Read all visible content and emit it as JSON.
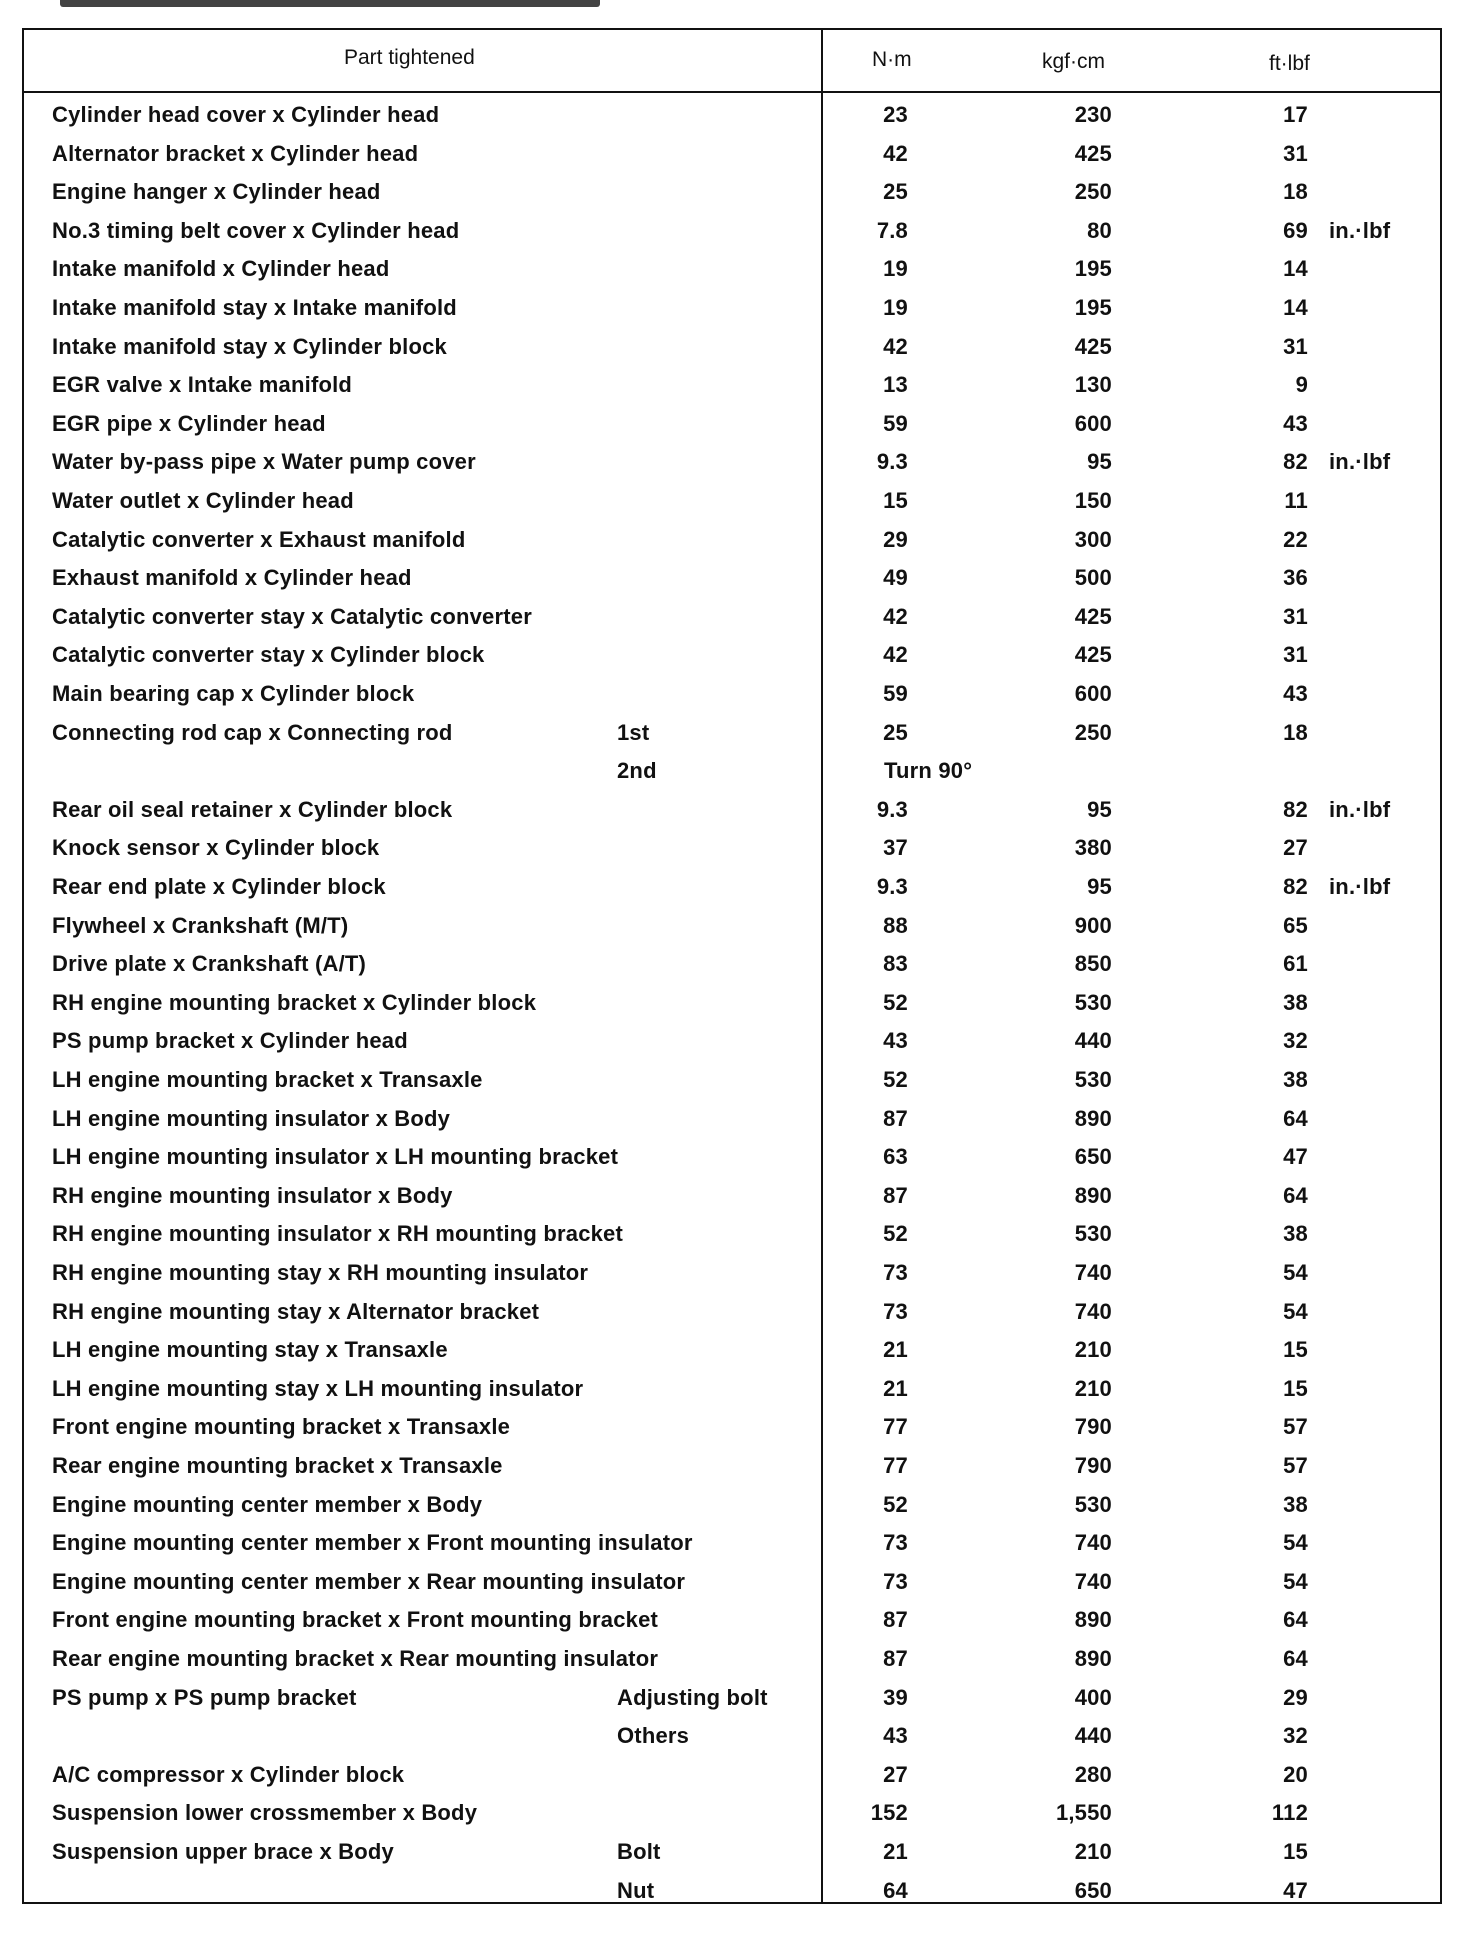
{
  "header": {
    "part": "Part tightened",
    "nm": "N·m",
    "kgf": "kgf·cm",
    "ft": "ft·lbf"
  },
  "rows": [
    {
      "part": "Cylinder head cover x Cylinder head",
      "sub": "",
      "nm": "23",
      "kgf": "230",
      "ft": "17",
      "note": ""
    },
    {
      "part": "Alternator bracket x Cylinder head",
      "sub": "",
      "nm": "42",
      "kgf": "425",
      "ft": "31",
      "note": ""
    },
    {
      "part": "Engine hanger x Cylinder head",
      "sub": "",
      "nm": "25",
      "kgf": "250",
      "ft": "18",
      "note": ""
    },
    {
      "part": "No.3 timing belt cover x Cylinder head",
      "sub": "",
      "nm": "7.8",
      "kgf": "80",
      "ft": "69",
      "note": "in.·lbf"
    },
    {
      "part": "Intake manifold x Cylinder head",
      "sub": "",
      "nm": "19",
      "kgf": "195",
      "ft": "14",
      "note": ""
    },
    {
      "part": "Intake manifold stay x Intake manifold",
      "sub": "",
      "nm": "19",
      "kgf": "195",
      "ft": "14",
      "note": ""
    },
    {
      "part": "Intake manifold stay x Cylinder block",
      "sub": "",
      "nm": "42",
      "kgf": "425",
      "ft": "31",
      "note": ""
    },
    {
      "part": "EGR valve x Intake manifold",
      "sub": "",
      "nm": "13",
      "kgf": "130",
      "ft": "9",
      "note": ""
    },
    {
      "part": "EGR pipe x Cylinder head",
      "sub": "",
      "nm": "59",
      "kgf": "600",
      "ft": "43",
      "note": ""
    },
    {
      "part": "Water by-pass pipe x Water pump cover",
      "sub": "",
      "nm": "9.3",
      "kgf": "95",
      "ft": "82",
      "note": "in.·lbf"
    },
    {
      "part": "Water outlet x Cylinder head",
      "sub": "",
      "nm": "15",
      "kgf": "150",
      "ft": "11",
      "note": ""
    },
    {
      "part": "Catalytic converter x Exhaust manifold",
      "sub": "",
      "nm": "29",
      "kgf": "300",
      "ft": "22",
      "note": ""
    },
    {
      "part": "Exhaust manifold x Cylinder head",
      "sub": "",
      "nm": "49",
      "kgf": "500",
      "ft": "36",
      "note": ""
    },
    {
      "part": "Catalytic converter stay x Catalytic converter",
      "sub": "",
      "nm": "42",
      "kgf": "425",
      "ft": "31",
      "note": ""
    },
    {
      "part": "Catalytic converter stay x Cylinder block",
      "sub": "",
      "nm": "42",
      "kgf": "425",
      "ft": "31",
      "note": ""
    },
    {
      "part": "Main bearing cap x Cylinder block",
      "sub": "",
      "nm": "59",
      "kgf": "600",
      "ft": "43",
      "note": ""
    },
    {
      "part": "Connecting rod cap x Connecting rod",
      "sub": "1st",
      "nm": "25",
      "kgf": "250",
      "ft": "18",
      "note": ""
    },
    {
      "part": "",
      "sub": "2nd",
      "nm": "",
      "turn": "Turn 90°",
      "kgf": "",
      "ft": "",
      "note": ""
    },
    {
      "part": "Rear oil seal retainer x Cylinder block",
      "sub": "",
      "nm": "9.3",
      "kgf": "95",
      "ft": "82",
      "note": "in.·lbf"
    },
    {
      "part": "Knock sensor x Cylinder block",
      "sub": "",
      "nm": "37",
      "kgf": "380",
      "ft": "27",
      "note": ""
    },
    {
      "part": "Rear end plate x Cylinder block",
      "sub": "",
      "nm": "9.3",
      "kgf": "95",
      "ft": "82",
      "note": "in.·lbf"
    },
    {
      "part": "Flywheel x Crankshaft (M/T)",
      "sub": "",
      "nm": "88",
      "kgf": "900",
      "ft": "65",
      "note": ""
    },
    {
      "part": "Drive plate x Crankshaft (A/T)",
      "sub": "",
      "nm": "83",
      "kgf": "850",
      "ft": "61",
      "note": ""
    },
    {
      "part": "RH engine mounting bracket x Cylinder block",
      "sub": "",
      "nm": "52",
      "kgf": "530",
      "ft": "38",
      "note": ""
    },
    {
      "part": "PS pump bracket x Cylinder head",
      "sub": "",
      "nm": "43",
      "kgf": "440",
      "ft": "32",
      "note": ""
    },
    {
      "part": "LH engine mounting bracket x Transaxle",
      "sub": "",
      "nm": "52",
      "kgf": "530",
      "ft": "38",
      "note": ""
    },
    {
      "part": "LH engine mounting insulator x Body",
      "sub": "",
      "nm": "87",
      "kgf": "890",
      "ft": "64",
      "note": ""
    },
    {
      "part": "LH engine mounting insulator x LH mounting bracket",
      "sub": "",
      "nm": "63",
      "kgf": "650",
      "ft": "47",
      "note": ""
    },
    {
      "part": "RH engine mounting insulator x Body",
      "sub": "",
      "nm": "87",
      "kgf": "890",
      "ft": "64",
      "note": ""
    },
    {
      "part": "RH engine mounting insulator x RH mounting bracket",
      "sub": "",
      "nm": "52",
      "kgf": "530",
      "ft": "38",
      "note": ""
    },
    {
      "part": "RH engine mounting stay x RH mounting insulator",
      "sub": "",
      "nm": "73",
      "kgf": "740",
      "ft": "54",
      "note": ""
    },
    {
      "part": "RH engine mounting stay x Alternator bracket",
      "sub": "",
      "nm": "73",
      "kgf": "740",
      "ft": "54",
      "note": ""
    },
    {
      "part": "LH engine mounting stay x Transaxle",
      "sub": "",
      "nm": "21",
      "kgf": "210",
      "ft": "15",
      "note": ""
    },
    {
      "part": "LH engine mounting stay x LH mounting insulator",
      "sub": "",
      "nm": "21",
      "kgf": "210",
      "ft": "15",
      "note": ""
    },
    {
      "part": "Front engine mounting bracket x Transaxle",
      "sub": "",
      "nm": "77",
      "kgf": "790",
      "ft": "57",
      "note": ""
    },
    {
      "part": "Rear engine mounting bracket x Transaxle",
      "sub": "",
      "nm": "77",
      "kgf": "790",
      "ft": "57",
      "note": ""
    },
    {
      "part": "Engine mounting center member x Body",
      "sub": "",
      "nm": "52",
      "kgf": "530",
      "ft": "38",
      "note": ""
    },
    {
      "part": "Engine mounting center member x Front mounting insulator",
      "sub": "",
      "nm": "73",
      "kgf": "740",
      "ft": "54",
      "note": ""
    },
    {
      "part": "Engine mounting center member x Rear mounting insulator",
      "sub": "",
      "nm": "73",
      "kgf": "740",
      "ft": "54",
      "note": ""
    },
    {
      "part": "Front engine mounting bracket x Front mounting bracket",
      "sub": "",
      "nm": "87",
      "kgf": "890",
      "ft": "64",
      "note": ""
    },
    {
      "part": "Rear engine mounting bracket x Rear mounting insulator",
      "sub": "",
      "nm": "87",
      "kgf": "890",
      "ft": "64",
      "note": ""
    },
    {
      "part": "PS pump x PS pump bracket",
      "sub": "Adjusting bolt",
      "nm": "39",
      "kgf": "400",
      "ft": "29",
      "note": ""
    },
    {
      "part": "",
      "sub": "Others",
      "nm": "43",
      "kgf": "440",
      "ft": "32",
      "note": ""
    },
    {
      "part": "A/C compressor x Cylinder block",
      "sub": "",
      "nm": "27",
      "kgf": "280",
      "ft": "20",
      "note": ""
    },
    {
      "part": "Suspension lower crossmember x Body",
      "sub": "",
      "nm": "152",
      "kgf": "1,550",
      "ft": "112",
      "note": ""
    },
    {
      "part": "Suspension upper brace x Body",
      "sub": "Bolt",
      "nm": "21",
      "kgf": "210",
      "ft": "15",
      "note": ""
    },
    {
      "part": "",
      "sub": "Nut",
      "nm": "64",
      "kgf": "650",
      "ft": "47",
      "note": ""
    }
  ]
}
